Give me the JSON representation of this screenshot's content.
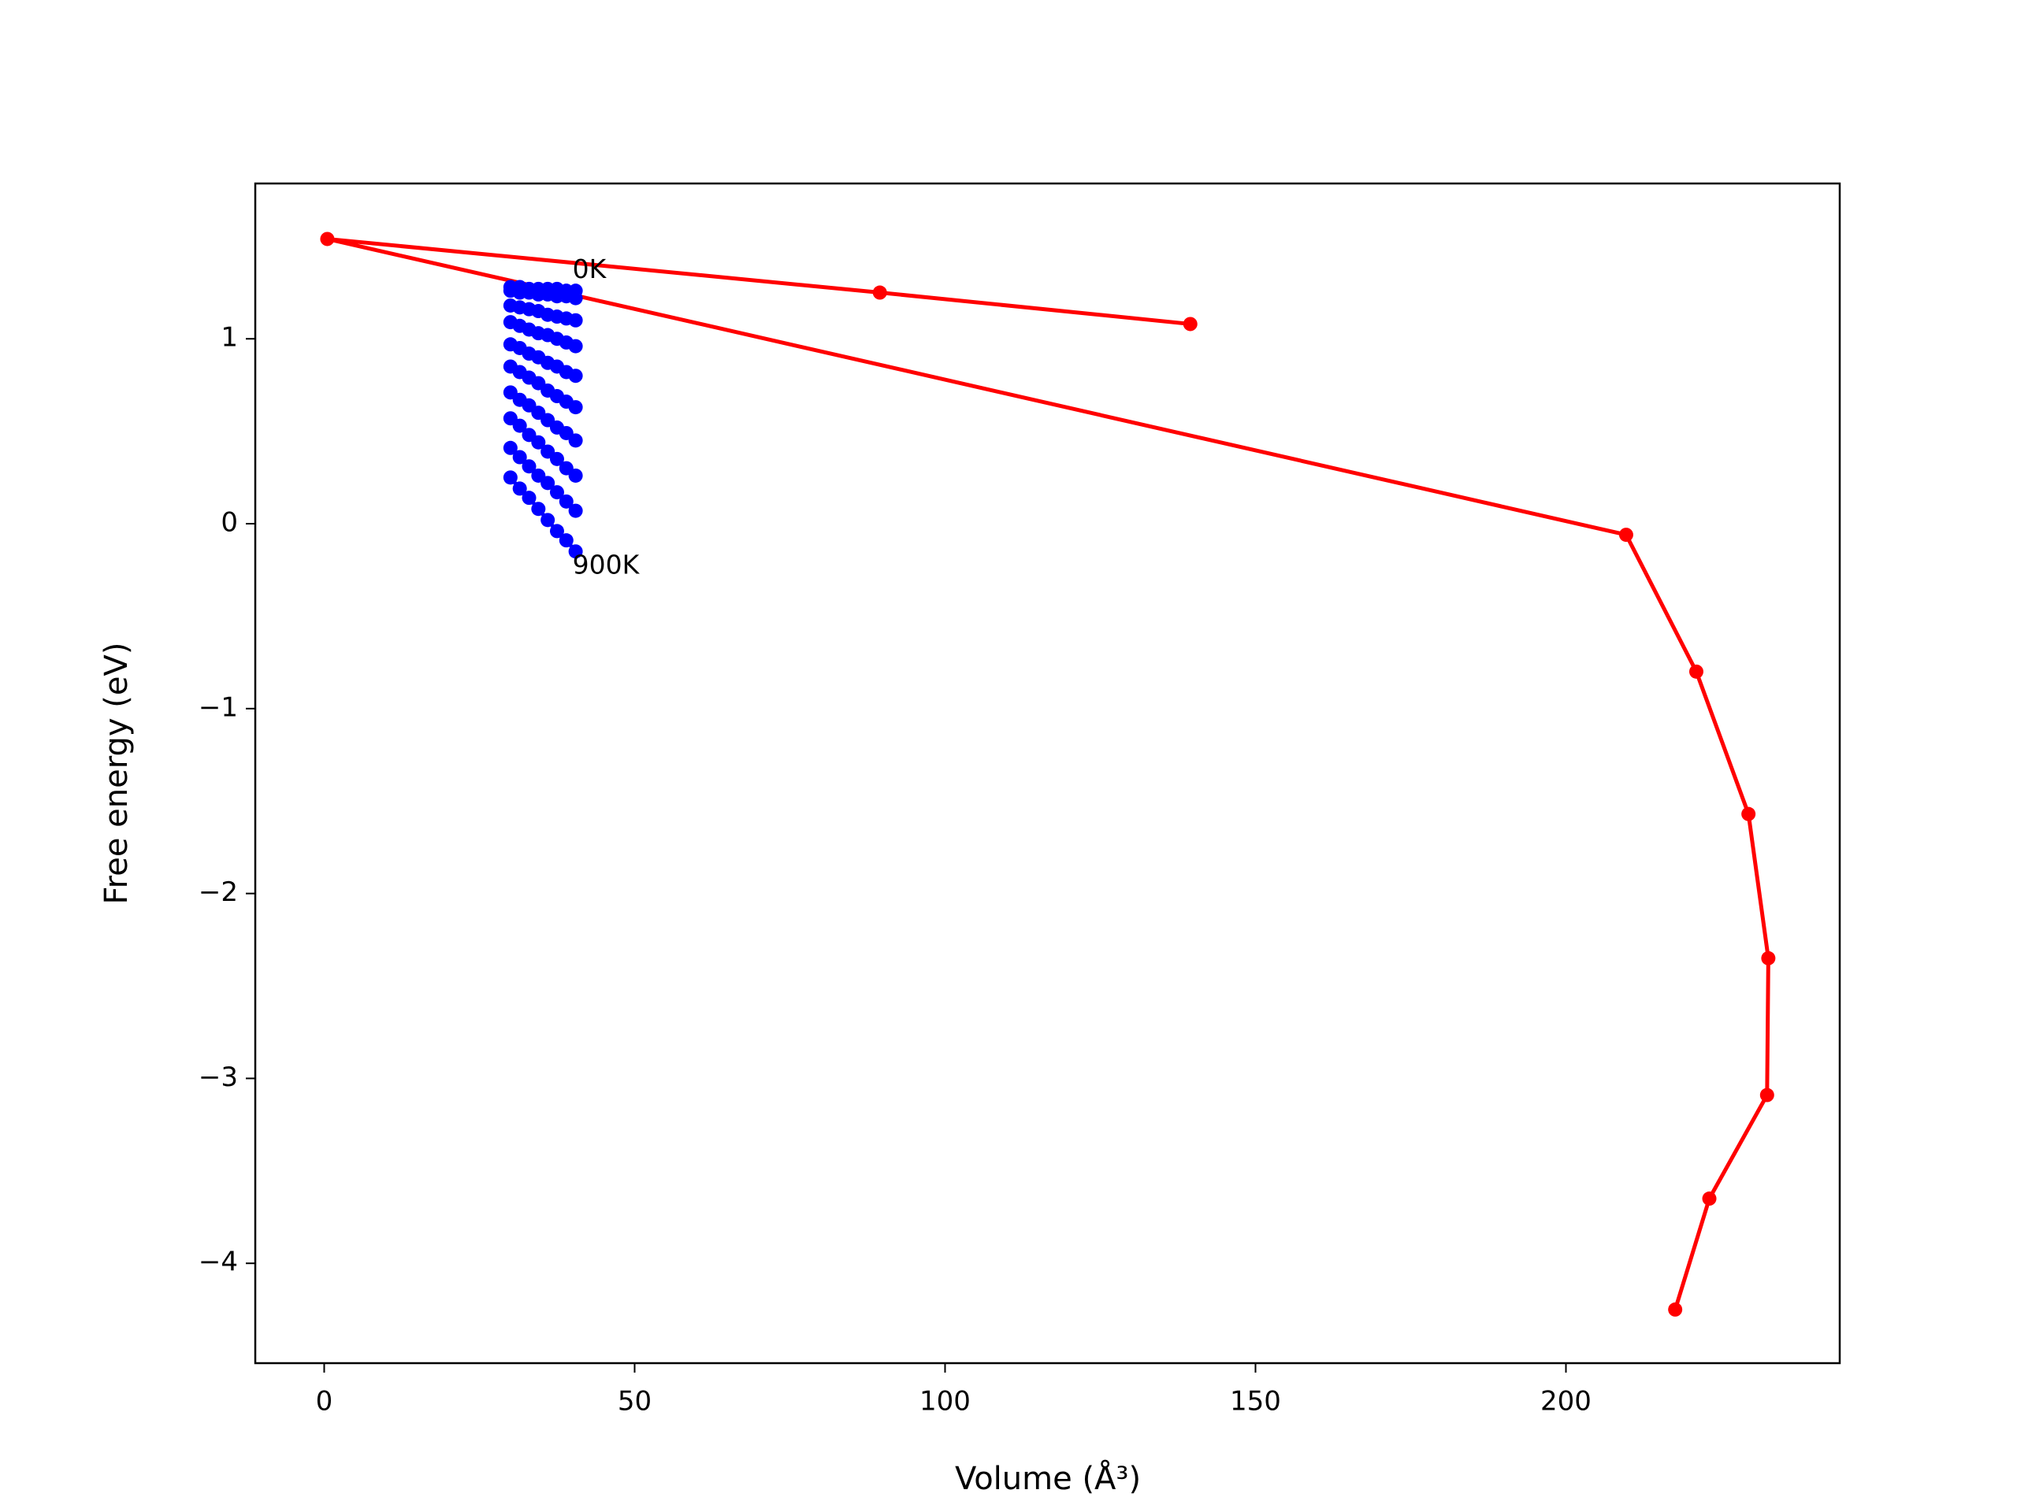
{
  "chart_data": {
    "type": "line",
    "xlabel": "Volume (Å³)",
    "ylabel": "Free energy (eV)",
    "xlim": [
      -11.1,
      244.1
    ],
    "ylim": [
      -4.54,
      1.84
    ],
    "xticks": [
      0,
      50,
      100,
      150,
      200
    ],
    "yticks": [
      {
        "value": -4,
        "label": "−4"
      },
      {
        "value": -3,
        "label": "−3"
      },
      {
        "value": -2,
        "label": "−2"
      },
      {
        "value": -1,
        "label": "−1"
      },
      0,
      1
    ],
    "annotations": [
      {
        "text": "0K",
        "x": 40,
        "y": 1.37
      },
      {
        "text": "900K",
        "x": 40,
        "y": -0.23
      }
    ],
    "series": [
      {
        "color": "#ff0000",
        "x": [
          139.5,
          89.5,
          0.5,
          209.7,
          221.0,
          229.4,
          232.6,
          232.4,
          223.1,
          217.6
        ],
        "values": [
          1.08,
          1.25,
          1.54,
          -0.06,
          -0.8,
          -1.57,
          -2.35,
          -3.09,
          -3.65,
          -4.25
        ]
      },
      {
        "color": "#0000ff",
        "x": [
          30,
          31.5,
          33,
          34.5,
          36,
          37.5,
          39,
          40.5
        ],
        "values": [
          1.28,
          1.28,
          1.27,
          1.27,
          1.27,
          1.27,
          1.26,
          1.26
        ]
      },
      {
        "color": "#0000ff",
        "x": [
          30,
          31.5,
          33,
          34.5,
          36,
          37.5,
          39,
          40.5
        ],
        "values": [
          1.26,
          1.25,
          1.25,
          1.24,
          1.24,
          1.23,
          1.23,
          1.22
        ]
      },
      {
        "color": "#0000ff",
        "x": [
          30,
          31.5,
          33,
          34.5,
          36,
          37.5,
          39,
          40.5
        ],
        "values": [
          1.18,
          1.17,
          1.16,
          1.15,
          1.13,
          1.12,
          1.11,
          1.1
        ]
      },
      {
        "color": "#0000ff",
        "x": [
          30,
          31.5,
          33,
          34.5,
          36,
          37.5,
          39,
          40.5
        ],
        "values": [
          1.09,
          1.07,
          1.05,
          1.03,
          1.02,
          1.0,
          0.98,
          0.96
        ]
      },
      {
        "color": "#0000ff",
        "x": [
          30,
          31.5,
          33,
          34.5,
          36,
          37.5,
          39,
          40.5
        ],
        "values": [
          0.97,
          0.95,
          0.92,
          0.9,
          0.87,
          0.85,
          0.82,
          0.8
        ]
      },
      {
        "color": "#0000ff",
        "x": [
          30,
          31.5,
          33,
          34.5,
          36,
          37.5,
          39,
          40.5
        ],
        "values": [
          0.85,
          0.82,
          0.79,
          0.76,
          0.72,
          0.69,
          0.66,
          0.63
        ]
      },
      {
        "color": "#0000ff",
        "x": [
          30,
          31.5,
          33,
          34.5,
          36,
          37.5,
          39,
          40.5
        ],
        "values": [
          0.71,
          0.67,
          0.64,
          0.6,
          0.56,
          0.52,
          0.49,
          0.45
        ]
      },
      {
        "color": "#0000ff",
        "x": [
          30,
          31.5,
          33,
          34.5,
          36,
          37.5,
          39,
          40.5
        ],
        "values": [
          0.57,
          0.53,
          0.48,
          0.44,
          0.39,
          0.35,
          0.3,
          0.26
        ]
      },
      {
        "color": "#0000ff",
        "x": [
          30,
          31.5,
          33,
          34.5,
          36,
          37.5,
          39,
          40.5
        ],
        "values": [
          0.41,
          0.36,
          0.31,
          0.26,
          0.22,
          0.17,
          0.12,
          0.07
        ]
      },
      {
        "color": "#0000ff",
        "x": [
          30,
          31.5,
          33,
          34.5,
          36,
          37.5,
          39,
          40.5
        ],
        "values": [
          0.25,
          0.19,
          0.14,
          0.08,
          0.02,
          -0.04,
          -0.09,
          -0.15
        ]
      }
    ]
  }
}
